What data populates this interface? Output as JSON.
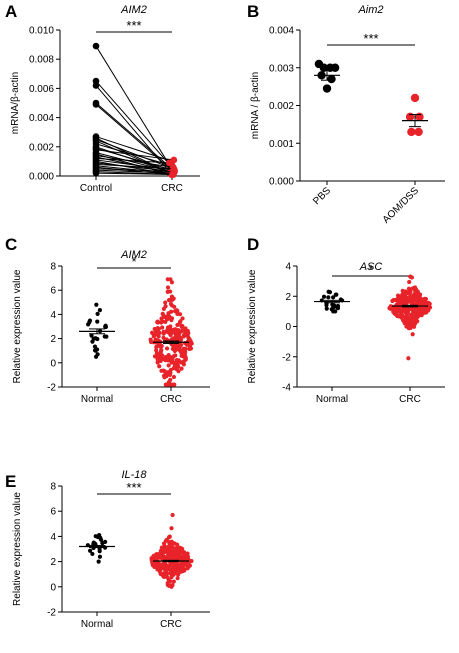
{
  "colors": {
    "black": "#000000",
    "red": "#e8232a"
  },
  "chart_data": [
    {
      "id": "A",
      "panel_label": "A",
      "type": "scatter-paired",
      "title": "AIM2",
      "ylabel": "mRNA/β-actin",
      "categories": [
        "Control",
        "CRC"
      ],
      "ylim": [
        0,
        0.01
      ],
      "yticks": [
        0,
        0.002,
        0.004,
        0.006,
        0.008,
        0.01
      ],
      "ytick_labels": [
        "0.000",
        "0.002",
        "0.004",
        "0.006",
        "0.008",
        "0.010"
      ],
      "significance": "***",
      "pairs": [
        [
          0.0089,
          0.0008
        ],
        [
          0.0065,
          0.0004
        ],
        [
          0.0062,
          0.0002
        ],
        [
          0.005,
          0.0006
        ],
        [
          0.0049,
          0.0003
        ],
        [
          0.0027,
          0.001
        ],
        [
          0.0026,
          0.0002
        ],
        [
          0.0025,
          0.0005
        ],
        [
          0.0024,
          0.0001
        ],
        [
          0.0022,
          0.0007
        ],
        [
          0.002,
          0.0002
        ],
        [
          0.0019,
          0.0004
        ],
        [
          0.0018,
          0.0011
        ],
        [
          0.0016,
          0.0003
        ],
        [
          0.0015,
          0.0001
        ],
        [
          0.0014,
          0.0006
        ],
        [
          0.0013,
          0.0002
        ],
        [
          0.0012,
          0.0009
        ],
        [
          0.0011,
          0.0004
        ],
        [
          0.001,
          0.0001
        ],
        [
          0.0009,
          0.0003
        ],
        [
          0.0008,
          0.0005
        ],
        [
          0.0007,
          0.0002
        ],
        [
          0.0006,
          0.0001
        ],
        [
          0.0005,
          0.0003
        ],
        [
          0.0004,
          0.0002
        ],
        [
          0.0003,
          0.0001
        ],
        [
          0.0002,
          0.0001
        ]
      ]
    },
    {
      "id": "B",
      "panel_label": "B",
      "type": "scatter",
      "title": "Aim2",
      "ylabel": "mRNA / β-actin",
      "categories": [
        "PBS",
        "AOM/DSS"
      ],
      "ylim": [
        0,
        0.004
      ],
      "yticks": [
        0,
        0.001,
        0.002,
        0.003,
        0.004
      ],
      "ytick_labels": [
        "0.000",
        "0.001",
        "0.002",
        "0.003",
        "0.004"
      ],
      "significance": "***",
      "groups": [
        {
          "name": "PBS",
          "color": "#000000",
          "mean": 0.0028,
          "sem": 0.00013,
          "points": [
            [
              -0.9,
              0.0031
            ],
            [
              -0.35,
              0.003
            ],
            [
              0.35,
              0.003
            ],
            [
              0.9,
              0.003
            ],
            [
              -0.6,
              0.0028
            ],
            [
              0.5,
              0.0027
            ],
            [
              0.0,
              0.00245
            ]
          ]
        },
        {
          "name": "AOM/DSS",
          "color": "#e8232a",
          "mean": 0.0016,
          "sem": 0.00016,
          "points": [
            [
              0.0,
              0.0022
            ],
            [
              -0.55,
              0.0017
            ],
            [
              0.5,
              0.0017
            ],
            [
              -0.4,
              0.0013
            ],
            [
              0.4,
              0.0013
            ]
          ]
        }
      ]
    },
    {
      "id": "C",
      "panel_label": "C",
      "type": "scatter",
      "title": "AIM2",
      "ylabel": "Relative expression value",
      "categories": [
        "Normal",
        "CRC"
      ],
      "ylim": [
        -2,
        8
      ],
      "yticks": [
        -2,
        0,
        2,
        4,
        6,
        8
      ],
      "ytick_labels": [
        "-2",
        "0",
        "2",
        "4",
        "6",
        "8"
      ],
      "significance": "*",
      "groups": [
        {
          "name": "Normal",
          "color": "#000000",
          "n": 24,
          "mean": 2.6,
          "sem": 0.2,
          "spread": [
            0.5,
            4.8
          ],
          "sd": 1.0
        },
        {
          "name": "CRC",
          "color": "#e8232a",
          "n": 260,
          "mean": 1.7,
          "sem": 0.1,
          "spread": [
            -1.8,
            6.9
          ],
          "sd": 1.7
        }
      ]
    },
    {
      "id": "D",
      "panel_label": "D",
      "type": "scatter",
      "title": "ASC",
      "ylabel": "Relative expression value",
      "categories": [
        "Normal",
        "CRC"
      ],
      "ylim": [
        -4,
        4
      ],
      "yticks": [
        -4,
        -2,
        0,
        2,
        4
      ],
      "ytick_labels": [
        "-4",
        "-2",
        "0",
        "2",
        "4"
      ],
      "significance": "*",
      "groups": [
        {
          "name": "Normal",
          "color": "#000000",
          "n": 22,
          "mean": 1.65,
          "sem": 0.08,
          "spread": [
            1.0,
            2.3
          ],
          "sd": 0.35
        },
        {
          "name": "CRC",
          "color": "#e8232a",
          "n": 260,
          "mean": 1.35,
          "sem": 0.05,
          "spread": [
            -2.1,
            3.3
          ],
          "sd": 0.6
        }
      ]
    },
    {
      "id": "E",
      "panel_label": "E",
      "type": "scatter",
      "title": "IL-18",
      "ylabel": "Relative expression value",
      "categories": [
        "Normal",
        "CRC"
      ],
      "ylim": [
        -2,
        8
      ],
      "yticks": [
        -2,
        0,
        2,
        4,
        6,
        8
      ],
      "ytick_labels": [
        "-2",
        "0",
        "2",
        "4",
        "6",
        "8"
      ],
      "significance": "***",
      "groups": [
        {
          "name": "Normal",
          "color": "#000000",
          "n": 22,
          "mean": 3.2,
          "sem": 0.08,
          "spread": [
            2.0,
            4.1
          ],
          "sd": 0.45
        },
        {
          "name": "CRC",
          "color": "#e8232a",
          "n": 260,
          "mean": 2.05,
          "sem": 0.05,
          "spread": [
            0.0,
            5.7
          ],
          "sd": 0.8
        }
      ]
    }
  ]
}
